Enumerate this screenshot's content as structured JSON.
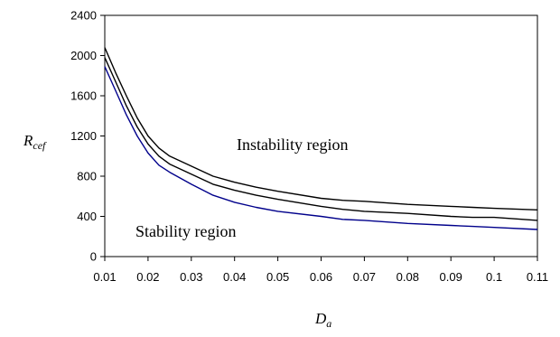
{
  "chart_data": {
    "type": "line",
    "xlabel": {
      "base": "D",
      "sub": "a"
    },
    "ylabel": {
      "base": "R",
      "sub": "cef"
    },
    "xlim": [
      0.01,
      0.11
    ],
    "ylim": [
      0,
      2400
    ],
    "x_ticks": [
      "0.01",
      "0.02",
      "0.03",
      "0.04",
      "0.05",
      "0.06",
      "0.07",
      "0.08",
      "0.09",
      "0.1",
      "0.11"
    ],
    "y_ticks": [
      "0",
      "400",
      "800",
      "1200",
      "1600",
      "2000",
      "2400"
    ],
    "grid": false,
    "legend": "none",
    "annotations": [
      "Instability region",
      "Stability region"
    ],
    "colors": {
      "upper": "#000000",
      "middle": "#000000",
      "lower": "#00008b"
    },
    "x": [
      0.01,
      0.0125,
      0.015,
      0.0175,
      0.02,
      0.0225,
      0.025,
      0.03,
      0.035,
      0.04,
      0.045,
      0.05,
      0.06,
      0.065,
      0.07,
      0.08,
      0.09,
      0.095,
      0.1,
      0.11
    ],
    "series": [
      {
        "key": "upper",
        "values": [
          2080,
          1830,
          1600,
          1380,
          1200,
          1080,
          1000,
          900,
          800,
          740,
          690,
          650,
          580,
          560,
          550,
          520,
          500,
          490,
          480,
          465
        ]
      },
      {
        "key": "middle",
        "values": [
          1980,
          1740,
          1500,
          1290,
          1120,
          1000,
          920,
          820,
          720,
          660,
          610,
          570,
          500,
          470,
          450,
          430,
          400,
          390,
          390,
          360
        ]
      },
      {
        "key": "lower",
        "values": [
          1890,
          1650,
          1410,
          1200,
          1030,
          910,
          840,
          720,
          610,
          540,
          490,
          450,
          400,
          370,
          360,
          330,
          310,
          300,
          290,
          270
        ]
      }
    ]
  }
}
